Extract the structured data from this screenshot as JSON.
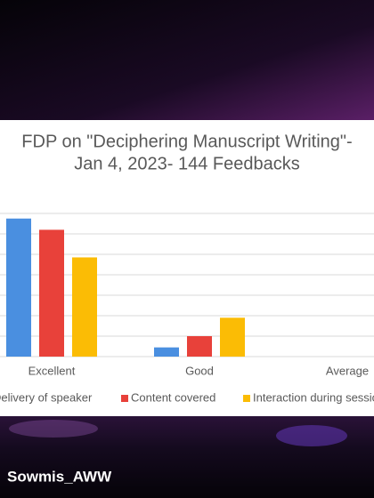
{
  "chart_data": {
    "type": "bar",
    "title_lines": [
      "FDP on \"Deciphering Manuscript Writing\"-",
      "Jan 4, 2023- 144 Feedbacks"
    ],
    "categories": [
      "Excellent",
      "Good",
      "Average"
    ],
    "series": [
      {
        "name": "Delivery of speaker",
        "color": "#4a8fe0",
        "values": [
          135,
          9,
          0
        ]
      },
      {
        "name": "Content covered",
        "color": "#e8413a",
        "values": [
          124,
          20,
          0
        ]
      },
      {
        "name": "Interaction during session",
        "color": "#fbbc05",
        "values": [
          97,
          38,
          0
        ]
      }
    ],
    "ylim": [
      0,
      140
    ],
    "yticks": [
      0,
      20,
      40,
      60,
      80,
      100,
      120,
      140
    ],
    "grid": true
  },
  "watermark": "Sowmis_AWW"
}
